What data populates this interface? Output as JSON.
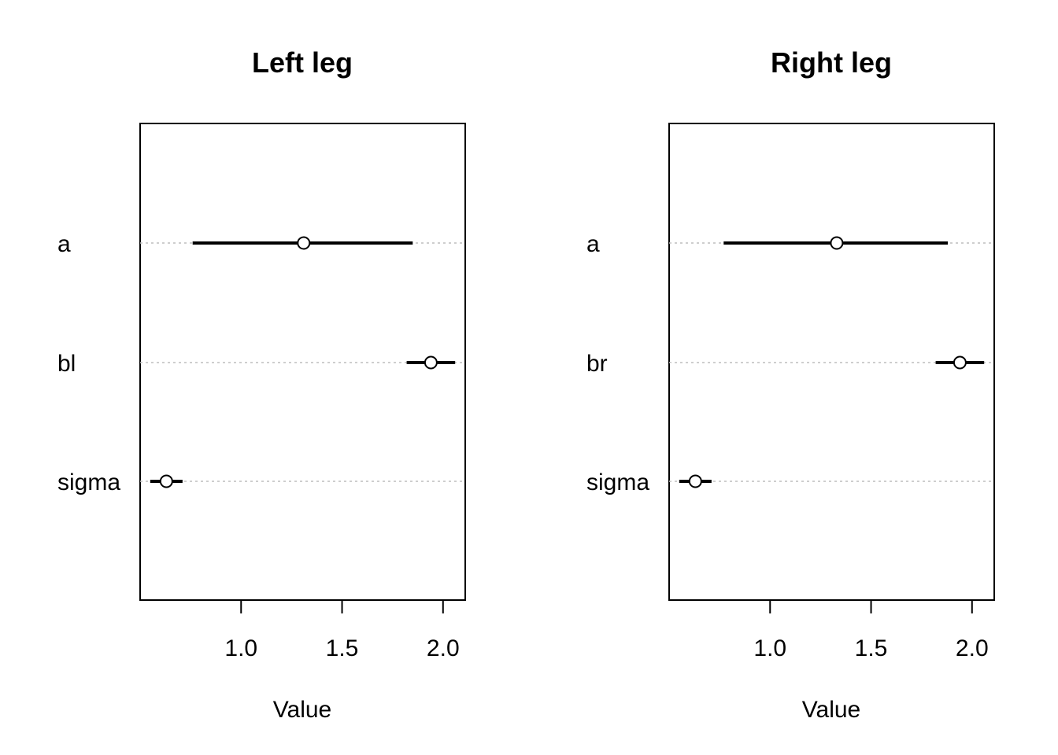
{
  "chart_data": [
    {
      "type": "dotplot",
      "title": "Left leg",
      "xlabel": "Value",
      "xlim": [
        0.5,
        2.11
      ],
      "xticks": [
        1.0,
        1.5,
        2.0
      ],
      "xtick_labels": [
        "1.0",
        "1.5",
        "2.0"
      ],
      "grid": "dotted horizontal",
      "parameters": [
        {
          "label": "a",
          "mean": 1.31,
          "lower": 0.76,
          "upper": 1.85
        },
        {
          "label": "bl",
          "mean": 1.94,
          "lower": 1.82,
          "upper": 2.06
        },
        {
          "label": "sigma",
          "mean": 0.63,
          "lower": 0.55,
          "upper": 0.71
        }
      ],
      "colors": {
        "line": "#000000",
        "grid": "#bebebe"
      }
    },
    {
      "type": "dotplot",
      "title": "Right leg",
      "xlabel": "Value",
      "xlim": [
        0.5,
        2.11
      ],
      "xticks": [
        1.0,
        1.5,
        2.0
      ],
      "xtick_labels": [
        "1.0",
        "1.5",
        "2.0"
      ],
      "grid": "dotted horizontal",
      "parameters": [
        {
          "label": "a",
          "mean": 1.33,
          "lower": 0.77,
          "upper": 1.88
        },
        {
          "label": "br",
          "mean": 1.94,
          "lower": 1.82,
          "upper": 2.06
        },
        {
          "label": "sigma",
          "mean": 0.63,
          "lower": 0.55,
          "upper": 0.71
        }
      ],
      "colors": {
        "line": "#000000",
        "grid": "#bebebe"
      }
    }
  ]
}
